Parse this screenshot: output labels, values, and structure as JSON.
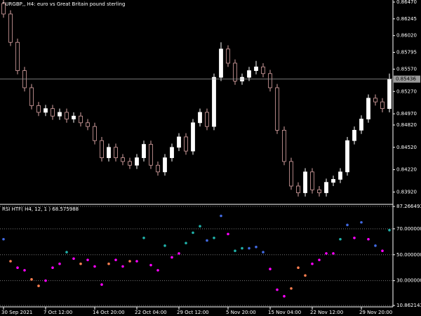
{
  "chart_data": [
    {
      "type": "candlestick",
      "title": "EURGBP,, H4:  euro vs Great Britain pound sterling",
      "up_color": "#ffffff",
      "down_color": "#d9a3a3",
      "last_price_color": "#9a9a9a",
      "categories": [
        "30 Sep 2021",
        null,
        null,
        null,
        null,
        null,
        "7 Oct 12:00",
        null,
        null,
        null,
        null,
        null,
        null,
        "14 Oct 20:00",
        null,
        null,
        null,
        null,
        null,
        "22 Oct 04:00",
        null,
        null,
        null,
        null,
        null,
        "29 Oct 12:00",
        null,
        null,
        null,
        null,
        null,
        null,
        "5 Nov 20:00",
        null,
        null,
        null,
        null,
        null,
        "15 Nov 04:00",
        null,
        null,
        null,
        null,
        null,
        "22 Nov 12:00",
        null,
        null,
        null,
        null,
        null,
        null,
        "29 Nov 20:00",
        null,
        null,
        null,
        null
      ],
      "open": [
        0.8645,
        0.8631,
        0.8593,
        0.8555,
        0.8532,
        0.8508,
        0.8499,
        0.8504,
        0.8494,
        0.8499,
        0.849,
        0.8494,
        0.8485,
        0.848,
        0.8461,
        0.8438,
        0.8452,
        0.8438,
        0.8433,
        0.8428,
        0.8438,
        0.8456,
        0.8428,
        0.8419,
        0.8438,
        0.8452,
        0.8466,
        0.8447,
        0.8485,
        0.8499,
        0.848,
        0.8546,
        0.8584,
        0.8565,
        0.8541,
        0.8546,
        0.8555,
        0.856,
        0.8551,
        0.8532,
        0.8475,
        0.8433,
        0.84,
        0.8391,
        0.8419,
        0.8395,
        0.8391,
        0.8405,
        0.8409,
        0.8419,
        0.8461,
        0.8475,
        0.849,
        0.8518,
        0.8513,
        0.8504
      ],
      "high": [
        0.865,
        0.8636,
        0.8598,
        0.856,
        0.8537,
        0.8513,
        0.8509,
        0.8509,
        0.8504,
        0.8504,
        0.8499,
        0.8499,
        0.849,
        0.8485,
        0.8466,
        0.8457,
        0.8457,
        0.8443,
        0.8438,
        0.8443,
        0.8461,
        0.8461,
        0.8433,
        0.8443,
        0.8457,
        0.8471,
        0.8471,
        0.849,
        0.8504,
        0.8504,
        0.8551,
        0.8593,
        0.8589,
        0.857,
        0.8551,
        0.856,
        0.8568,
        0.8565,
        0.8556,
        0.8537,
        0.848,
        0.8438,
        0.8405,
        0.8424,
        0.8424,
        0.84,
        0.841,
        0.8414,
        0.8424,
        0.8466,
        0.848,
        0.8495,
        0.8523,
        0.8523,
        0.8518,
        0.8551
      ],
      "low": [
        0.8626,
        0.8588,
        0.855,
        0.8527,
        0.8503,
        0.8494,
        0.8494,
        0.8489,
        0.8489,
        0.8485,
        0.8485,
        0.848,
        0.8475,
        0.8456,
        0.8433,
        0.8433,
        0.8433,
        0.8428,
        0.8423,
        0.8423,
        0.8433,
        0.8423,
        0.8414,
        0.8414,
        0.8433,
        0.8447,
        0.8442,
        0.8442,
        0.848,
        0.8475,
        0.8475,
        0.8541,
        0.856,
        0.8536,
        0.8536,
        0.8541,
        0.855,
        0.8546,
        0.8527,
        0.847,
        0.8428,
        0.8395,
        0.8386,
        0.8386,
        0.839,
        0.8386,
        0.8386,
        0.84,
        0.8404,
        0.8414,
        0.8456,
        0.847,
        0.8485,
        0.8508,
        0.8499,
        0.8499
      ],
      "close": [
        0.8631,
        0.8593,
        0.8555,
        0.8532,
        0.8508,
        0.8499,
        0.8504,
        0.8494,
        0.8499,
        0.849,
        0.8494,
        0.8485,
        0.848,
        0.8461,
        0.8438,
        0.8452,
        0.8438,
        0.8433,
        0.8428,
        0.8438,
        0.8456,
        0.8428,
        0.8419,
        0.8438,
        0.8452,
        0.8466,
        0.8447,
        0.8485,
        0.8499,
        0.848,
        0.8546,
        0.8584,
        0.8565,
        0.8541,
        0.8546,
        0.8555,
        0.856,
        0.8551,
        0.8532,
        0.8475,
        0.8433,
        0.84,
        0.8391,
        0.8419,
        0.8395,
        0.8391,
        0.8405,
        0.8409,
        0.8419,
        0.8461,
        0.8475,
        0.849,
        0.8518,
        0.8513,
        0.8504,
        0.85436
      ],
      "ylim": [
        0.83764,
        0.86498
      ],
      "yticks": [
        {
          "value": 0.8647,
          "label": "0.86470"
        },
        {
          "value": 0.86245,
          "label": "0.86245"
        },
        {
          "value": 0.8602,
          "label": "0.86020"
        },
        {
          "value": 0.85795,
          "label": "0.85795"
        },
        {
          "value": 0.8557,
          "label": "0.85570"
        },
        {
          "value": 0.8527,
          "label": "0.85270"
        },
        {
          "value": 0.8497,
          "label": "0.84970"
        },
        {
          "value": 0.8482,
          "label": "0.84820"
        },
        {
          "value": 0.8452,
          "label": "0.84520"
        },
        {
          "value": 0.8422,
          "label": "0.84220"
        },
        {
          "value": 0.8392,
          "label": "0.83920"
        }
      ]
    },
    {
      "type": "scatter",
      "title": "RSI HTF( H4, 12, 1 ) 68.575988",
      "values": [
        62,
        45,
        40,
        38,
        31,
        26,
        30,
        40,
        43,
        52,
        47,
        43,
        46,
        41,
        27,
        43,
        46,
        41,
        45,
        45,
        63,
        42,
        38,
        57,
        48,
        51,
        59,
        67,
        72,
        61,
        63,
        80,
        66,
        53,
        55,
        55,
        56,
        52,
        39,
        23,
        18,
        24,
        40,
        34,
        43,
        46,
        51,
        51,
        62,
        73,
        63,
        75,
        62,
        57,
        53,
        69
      ],
      "colors": [
        "#4169e1",
        "#ff7f50",
        "#ff00ff",
        "#ff00ff",
        "#ff7f50",
        "#ff7f50",
        "#ff00ff",
        "#ff00ff",
        "#ff00ff",
        "#20b2aa",
        "#ff00ff",
        "#ff7f50",
        "#ff00ff",
        "#ff00ff",
        "#ff00ff",
        "#ff7f50",
        "#ff00ff",
        "#ff00ff",
        "#ff7f50",
        "#ff00ff",
        "#20b2aa",
        "#ff00ff",
        "#ff00ff",
        "#20b2aa",
        "#ff00ff",
        "#ff00ff",
        "#20b2aa",
        "#20b2aa",
        "#20b2aa",
        "#4169e1",
        "#20b2aa",
        "#4169e1",
        "#ff00ff",
        "#20b2aa",
        "#20b2aa",
        "#4169e1",
        "#4169e1",
        "#4169e1",
        "#ff00ff",
        "#ff00ff",
        "#ff00ff",
        "#ff7f50",
        "#ff7f50",
        "#ff7f50",
        "#ff00ff",
        "#ff00ff",
        "#ff00ff",
        "#ff00ff",
        "#20b2aa",
        "#4169e1",
        "#ff00ff",
        "#4169e1",
        "#ff00ff",
        "#4169e1",
        "#ff00ff",
        "#20b2aa"
      ],
      "ylim": [
        10.862143,
        87.266493
      ],
      "yticks": [
        {
          "value": 87.266493,
          "label": "87.266493"
        },
        {
          "value": 70,
          "label": "70.000000"
        },
        {
          "value": 50,
          "label": "50.000000"
        },
        {
          "value": 30,
          "label": "30.000000"
        },
        {
          "value": 10.862143,
          "label": "10.862143"
        }
      ],
      "grid": true
    }
  ]
}
